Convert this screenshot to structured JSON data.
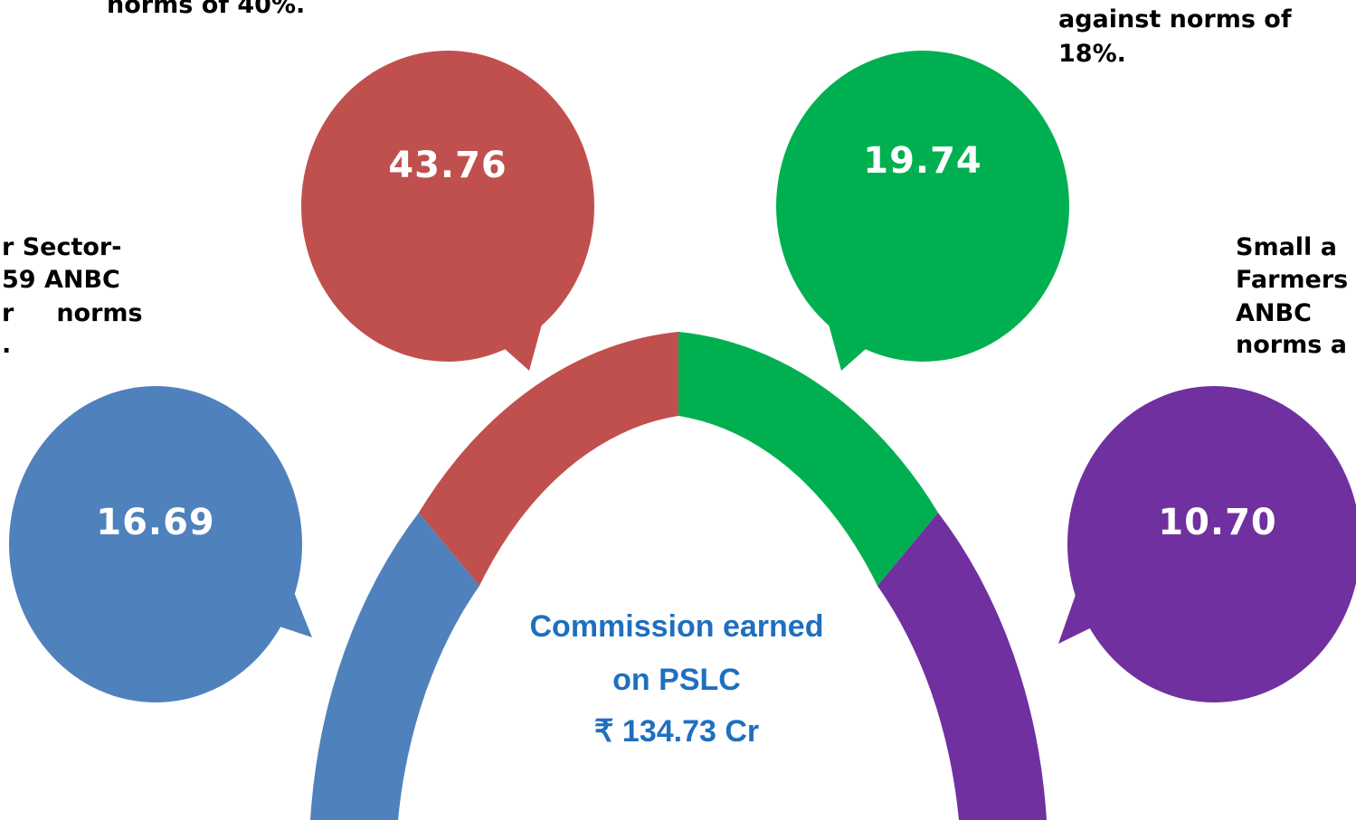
{
  "callouts": [
    {
      "value": "43.76",
      "text": [
        "norms of 40%."
      ]
    },
    {
      "value": "19.74",
      "text": [
        "against norms of",
        "18%."
      ]
    },
    {
      "value": "16.69",
      "text": [
        "r Sector-",
        "59 ANBC",
        "r     norms",
        "."
      ]
    },
    {
      "value": "10.70",
      "text": [
        "Small a",
        "Farmers",
        "ANBC",
        "norms a"
      ]
    }
  ],
  "center": {
    "lines": [
      "Commission earned",
      "on PSLC",
      "₹ 134.73 Cr"
    ]
  }
}
